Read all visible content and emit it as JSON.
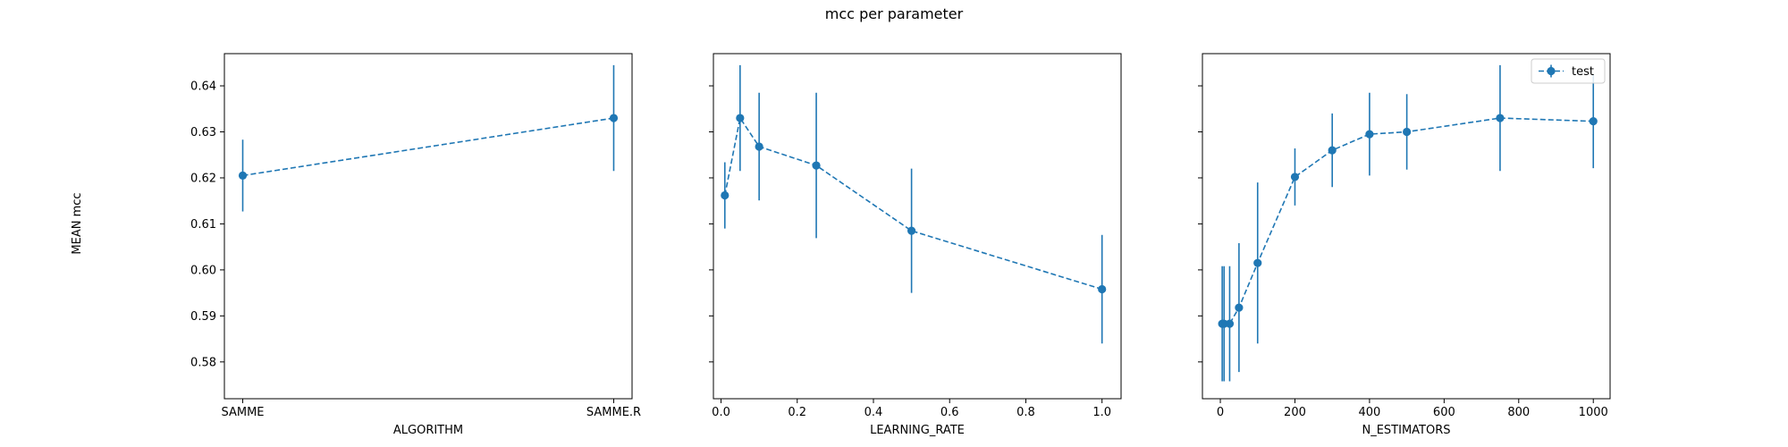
{
  "figure": {
    "title": "mcc per parameter",
    "ylabel": "MEAN mcc"
  },
  "style": {
    "series_color": "#1f77b4",
    "axes_color": "#000000",
    "background": "#ffffff"
  },
  "chart_data": [
    {
      "type": "line",
      "error_bars": true,
      "xlabel": "ALGORITHM",
      "x_scale": "categorical",
      "categories": [
        "SAMME",
        "SAMME.R"
      ],
      "x_ticks": [
        "SAMME",
        "SAMME.R"
      ],
      "ylim": [
        0.572,
        0.647
      ],
      "y_ticks": [
        "0.58",
        "0.59",
        "0.60",
        "0.61",
        "0.62",
        "0.63",
        "0.64"
      ],
      "show_y_tick_labels": true,
      "series": [
        {
          "values": [
            0.6205,
            0.633
          ],
          "errors": [
            0.0078,
            0.0115
          ]
        }
      ]
    },
    {
      "type": "line",
      "error_bars": true,
      "xlabel": "LEARNING_RATE",
      "x_scale": "linear",
      "xlim": [
        -0.02,
        1.05
      ],
      "x_ticks": [
        "0.0",
        "0.2",
        "0.4",
        "0.6",
        "0.8",
        "1.0"
      ],
      "ylim": [
        0.572,
        0.647
      ],
      "y_ticks": [
        "0.58",
        "0.59",
        "0.60",
        "0.61",
        "0.62",
        "0.63",
        "0.64"
      ],
      "show_y_tick_labels": false,
      "series": [
        {
          "x": [
            0.01,
            0.05,
            0.1,
            0.25,
            0.5,
            1.0
          ],
          "values": [
            0.6162,
            0.633,
            0.6268,
            0.6227,
            0.6085,
            0.5958
          ],
          "errors": [
            0.0072,
            0.0115,
            0.0117,
            0.0158,
            0.0135,
            0.0118
          ]
        }
      ]
    },
    {
      "type": "line",
      "error_bars": true,
      "xlabel": "N_ESTIMATORS",
      "x_scale": "linear",
      "xlim": [
        -48,
        1045
      ],
      "x_ticks": [
        "0",
        "200",
        "400",
        "600",
        "800",
        "1000"
      ],
      "ylim": [
        0.572,
        0.647
      ],
      "y_ticks": [
        "0.58",
        "0.59",
        "0.60",
        "0.61",
        "0.62",
        "0.63",
        "0.64"
      ],
      "show_y_tick_labels": false,
      "legend": {
        "placement": "upper-right",
        "entries": [
          "test"
        ]
      },
      "series": [
        {
          "name": "test",
          "x": [
            5,
            10,
            25,
            50,
            100,
            200,
            300,
            400,
            500,
            750,
            1000
          ],
          "values": [
            0.5883,
            0.5883,
            0.5883,
            0.5918,
            0.6015,
            0.6202,
            0.626,
            0.6295,
            0.63,
            0.633,
            0.6323
          ],
          "errors": [
            0.0125,
            0.0125,
            0.0125,
            0.014,
            0.0175,
            0.0062,
            0.008,
            0.009,
            0.0082,
            0.0115,
            0.0102
          ]
        }
      ]
    }
  ]
}
